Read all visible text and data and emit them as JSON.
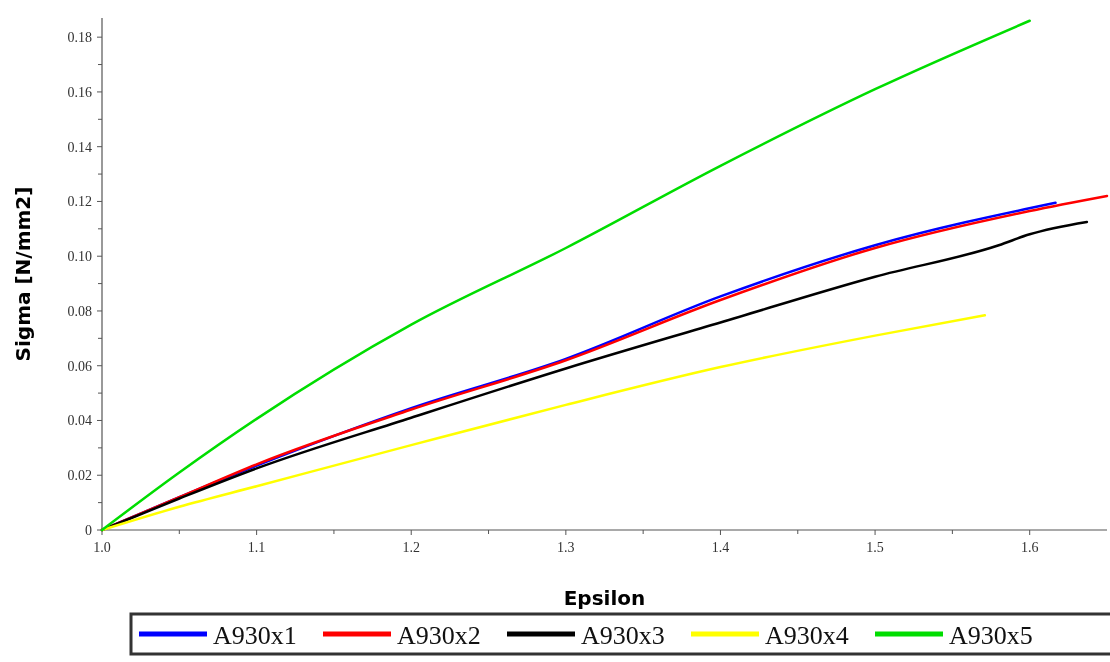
{
  "chart_data": {
    "type": "line",
    "xlabel": "Epsilon",
    "ylabel": "Sigma [N/mm2]",
    "xlim": [
      1.0,
      1.65
    ],
    "ylim": [
      0,
      0.187
    ],
    "xticks": [
      {
        "value": 1.0,
        "label": "1.0"
      },
      1.1,
      1.2,
      1.3,
      1.4,
      1.5,
      1.6
    ],
    "yticks": [
      0,
      0.02,
      0.04,
      0.06,
      0.08,
      {
        "value": 0.1,
        "label": "0.10"
      },
      0.12,
      0.14,
      0.16,
      0.18
    ],
    "grid": false,
    "legend": "bottom",
    "marker": "none",
    "line_style": "solid",
    "series": [
      {
        "name": "A930x1",
        "color": "#0000ff",
        "x": [
          1.0,
          1.1,
          1.2,
          1.3,
          1.4,
          1.5,
          1.6167
        ],
        "values": [
          0,
          0.0235,
          0.0445,
          0.0625,
          0.0853,
          0.104,
          0.1195
        ]
      },
      {
        "name": "A930x2",
        "color": "#ff0000",
        "x": [
          1.0,
          1.05,
          1.1,
          1.2,
          1.3,
          1.4,
          1.5,
          1.6,
          1.65
        ],
        "values": [
          0,
          0.012,
          0.024,
          0.044,
          0.062,
          0.084,
          0.103,
          0.1165,
          0.122
        ]
      },
      {
        "name": "A930x3",
        "color": "#000000",
        "x": [
          1.0,
          1.05,
          1.1,
          1.2,
          1.3,
          1.4,
          1.5,
          1.58,
          1.6,
          1.637
        ],
        "values": [
          0,
          0.0115,
          0.0225,
          0.041,
          0.059,
          0.0758,
          0.0925,
          0.104,
          0.108,
          0.1125
        ]
      },
      {
        "name": "A930x4",
        "color": "#ffff00",
        "x": [
          1.0,
          1.05,
          1.1,
          1.2,
          1.3,
          1.4,
          1.5,
          1.571
        ],
        "values": [
          0,
          0.0085,
          0.016,
          0.031,
          0.0457,
          0.0595,
          0.071,
          0.0784
        ]
      },
      {
        "name": "A930x5",
        "color": "#00dd00",
        "x": [
          1.0,
          1.05,
          1.1,
          1.2,
          1.3,
          1.4,
          1.5,
          1.6
        ],
        "values": [
          0,
          0.021,
          0.0406,
          0.075,
          0.103,
          0.133,
          0.161,
          0.186
        ]
      }
    ]
  }
}
